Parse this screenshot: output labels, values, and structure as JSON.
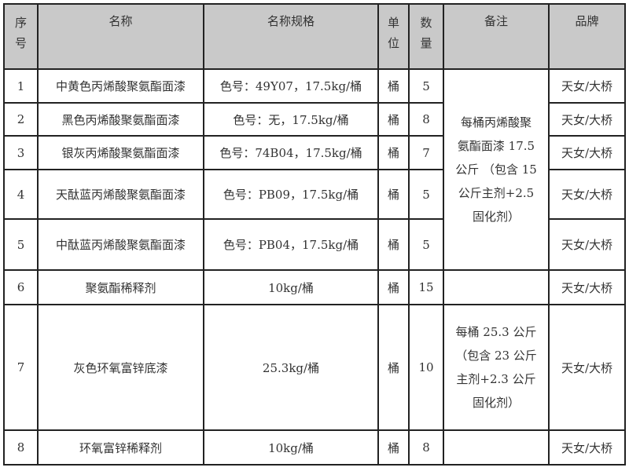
{
  "headers": {
    "no": [
      "序",
      "号"
    ],
    "name": "名称",
    "spec": "名称规格",
    "unit": [
      "单",
      "位"
    ],
    "qty": [
      "数",
      "量"
    ],
    "remark": "备注",
    "brand": "品牌"
  },
  "rows": [
    {
      "no": "1",
      "name": "中黄色丙烯酸聚氨酯面漆",
      "spec": "色号：49Y07，17.5kg/桶",
      "unit": "桶",
      "qty": "5",
      "brand": "天女/大桥"
    },
    {
      "no": "2",
      "name": "黑色丙烯酸聚氨酯面漆",
      "spec": "色号：无，17.5kg/桶",
      "unit": "桶",
      "qty": "8",
      "brand": "天女/大桥"
    },
    {
      "no": "3",
      "name": "银灰丙烯酸聚氨酯面漆",
      "spec": "色号：74B04，17.5kg/桶",
      "unit": "桶",
      "qty": "7",
      "brand": "天女/大桥"
    },
    {
      "no": "4",
      "name": "天酞蓝丙烯酸聚氨酯面漆",
      "spec": "色号：PB09，17.5kg/桶",
      "unit": "桶",
      "qty": "5",
      "brand": "天女/大桥"
    },
    {
      "no": "5",
      "name": "中酞蓝丙烯酸聚氨酯面漆",
      "spec": "色号：PB04，17.5kg/桶",
      "unit": "桶",
      "qty": "5",
      "brand": "天女/大桥"
    },
    {
      "no": "6",
      "name": "聚氨酯稀释剂",
      "spec": "10kg/桶",
      "unit": "桶",
      "qty": "15",
      "brand": "天女/大桥"
    },
    {
      "no": "7",
      "name": "灰色环氧富锌底漆",
      "spec": "25.3kg/桶",
      "unit": "桶",
      "qty": "10",
      "brand": "天女/大桥"
    },
    {
      "no": "8",
      "name": "环氧富锌稀释剂",
      "spec": "10kg/桶",
      "unit": "桶",
      "qty": "8",
      "brand": "天女/大桥"
    }
  ],
  "remarks": {
    "polyurethane": [
      "每桶丙烯酸聚",
      "氨酯面漆 17.5",
      "公斤 （包含 15",
      "公斤主剂+2.5",
      "固化剂）"
    ],
    "epoxy": [
      "每桶 25.3 公斤",
      "（包含 23 公斤",
      "主剂+2.3 公斤",
      "固化剂）"
    ]
  }
}
